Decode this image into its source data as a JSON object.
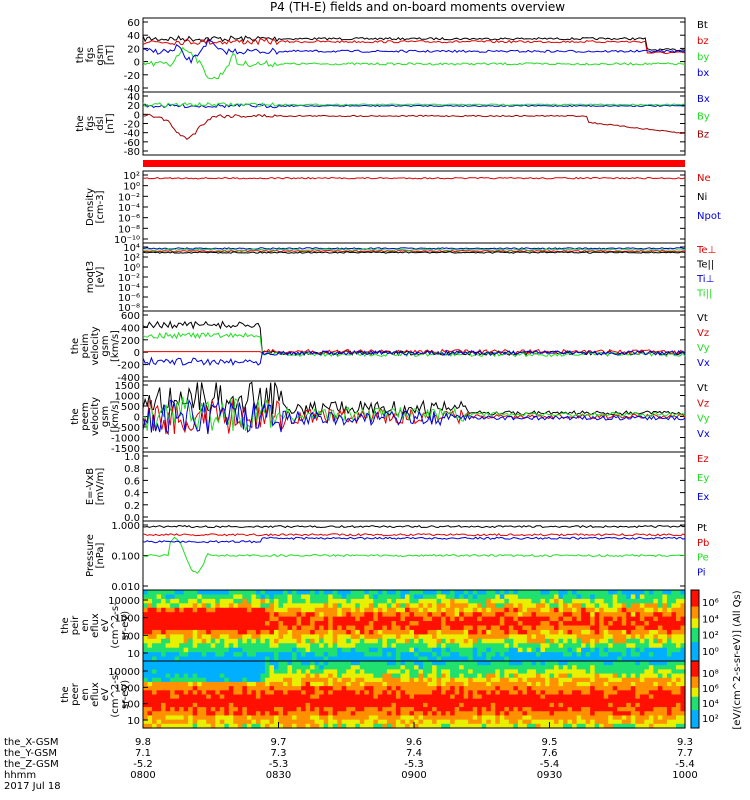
{
  "title": "P4 (TH-E) fields and on-board moments overview",
  "colors": {
    "black": "#000000",
    "red": "#e00000",
    "darkred": "#a00000",
    "green": "#22dd22",
    "blue": "#0000dd"
  },
  "chart_data": [
    {
      "id": "fgs_gsm",
      "type": "line",
      "ylabel_lines": [
        "the",
        "fgs",
        "gsm",
        "[nT]"
      ],
      "ylim": [
        -40,
        60
      ],
      "yticks": [
        "60",
        "40",
        "20",
        "0",
        "-20",
        "-40"
      ],
      "series": [
        {
          "name": "Bt",
          "color": "black"
        },
        {
          "name": "bz",
          "color": "red"
        },
        {
          "name": "by",
          "color": "green"
        },
        {
          "name": "bx",
          "color": "blue"
        }
      ]
    },
    {
      "id": "fgs_dsl",
      "type": "line",
      "ylabel_lines": [
        "the",
        "fgs",
        "dsl",
        "[nT]"
      ],
      "ylim": [
        -80,
        40
      ],
      "yticks": [
        "40",
        "20",
        "0",
        "-20",
        "-40",
        "-60",
        "-80"
      ],
      "series": [
        {
          "name": "Bx",
          "color": "blue"
        },
        {
          "name": "By",
          "color": "green"
        },
        {
          "name": "Bz",
          "color": "darkred"
        }
      ]
    },
    {
      "id": "density",
      "type": "line",
      "ylabel_lines": [
        "Density",
        "[cm-3]"
      ],
      "log": true,
      "yticks": [
        "10²",
        "10⁰",
        "10⁻²",
        "10⁻⁴",
        "10⁻⁶",
        "10⁻⁸",
        "10⁻¹⁰"
      ],
      "series": [
        {
          "name": "Ne",
          "color": "red"
        },
        {
          "name": "Ni",
          "color": "black"
        },
        {
          "name": "Npot",
          "color": "blue"
        }
      ]
    },
    {
      "id": "temperature",
      "type": "line",
      "ylabel_lines": [
        "moqt3",
        "[eV]"
      ],
      "log": true,
      "yticks": [
        "10⁴",
        "10²",
        "10⁰",
        "10⁻²",
        "10⁻⁴",
        "10⁻⁶",
        "10⁻⁸"
      ],
      "series": [
        {
          "name": "Te⊥",
          "color": "red"
        },
        {
          "name": "Te||",
          "color": "black"
        },
        {
          "name": "Ti⊥",
          "color": "blue"
        },
        {
          "name": "Ti||",
          "color": "green"
        }
      ]
    },
    {
      "id": "ion_velocity",
      "type": "line",
      "ylabel_lines": [
        "the",
        "peim",
        "velocity",
        "gsm",
        "[km/s]"
      ],
      "ylim": [
        -400,
        600
      ],
      "yticks": [
        "600",
        "400",
        "200",
        "0",
        "-200",
        "-400"
      ],
      "series": [
        {
          "name": "Vt",
          "color": "black"
        },
        {
          "name": "Vz",
          "color": "red"
        },
        {
          "name": "Vy",
          "color": "green"
        },
        {
          "name": "Vx",
          "color": "blue"
        }
      ]
    },
    {
      "id": "electron_velocity",
      "type": "line",
      "ylabel_lines": [
        "the",
        "peem",
        "velocity",
        "gsm",
        "[km/s]"
      ],
      "ylim": [
        -1500,
        1500
      ],
      "yticks": [
        "1500",
        "1000",
        "500",
        "0",
        "-500",
        "-1000",
        "-1500"
      ],
      "series": [
        {
          "name": "Vt",
          "color": "black"
        },
        {
          "name": "Vz",
          "color": "red"
        },
        {
          "name": "Vy",
          "color": "green"
        },
        {
          "name": "Vx",
          "color": "blue"
        }
      ]
    },
    {
      "id": "efield",
      "type": "line",
      "ylabel_lines": [
        "E=-VxB",
        "[mV/m]"
      ],
      "ylim": [
        0,
        1
      ],
      "yticks": [
        "1.0",
        "0.8",
        "0.6",
        "0.4",
        "0.2",
        "0.0"
      ],
      "series": [
        {
          "name": "Ez",
          "color": "red"
        },
        {
          "name": "Ey",
          "color": "green"
        },
        {
          "name": "Ex",
          "color": "blue"
        }
      ]
    },
    {
      "id": "pressure",
      "type": "line",
      "ylabel_lines": [
        "Pressure",
        "[nPa]"
      ],
      "log": true,
      "yticks": [
        "1.000",
        "0.100",
        "0.010"
      ],
      "series": [
        {
          "name": "Pt",
          "color": "black"
        },
        {
          "name": "Pb",
          "color": "red"
        },
        {
          "name": "Pe",
          "color": "green"
        },
        {
          "name": "Pi",
          "color": "blue"
        }
      ]
    },
    {
      "id": "ion_spectrogram",
      "type": "heatmap",
      "ylabel_lines": [
        "the",
        "peir",
        "en",
        "eflux",
        "eV",
        "(cm^2-s-",
        "sr-eV)"
      ],
      "yticks": [
        "10000",
        "1000",
        "100",
        "10"
      ]
    },
    {
      "id": "electron_spectrogram",
      "type": "heatmap",
      "ylabel_lines": [
        "the",
        "peer",
        "en",
        "eflux",
        "eV",
        "(cm^2-s-",
        "sr-eV)"
      ],
      "yticks": [
        "10000",
        "1000",
        "100",
        "10"
      ]
    }
  ],
  "colorbars": [
    {
      "ticks": [
        "10⁶",
        "10⁴",
        "10²",
        "10⁰"
      ]
    },
    {
      "ticks": [
        "10⁸",
        "10⁶",
        "10⁴",
        "10²"
      ]
    }
  ],
  "colorbar_label": "[eV/(cm^2-s-sr-eV)] (All Qs)",
  "xaxis": {
    "row_labels": [
      "the_X-GSM",
      "the_Y-GSM",
      "the_Z-GSM",
      "hhmm",
      "2017 Jul 18"
    ],
    "ticks": [
      {
        "rows": [
          "9.8",
          "7.1",
          "-5.2",
          "0800"
        ]
      },
      {
        "rows": [
          "9.7",
          "7.3",
          "-5.3",
          "0830"
        ]
      },
      {
        "rows": [
          "9.6",
          "7.4",
          "-5.3",
          "0900"
        ]
      },
      {
        "rows": [
          "9.5",
          "7.6",
          "-5.4",
          "0930"
        ]
      },
      {
        "rows": [
          "9.3",
          "7.7",
          "-5.4",
          "1000"
        ]
      }
    ]
  }
}
